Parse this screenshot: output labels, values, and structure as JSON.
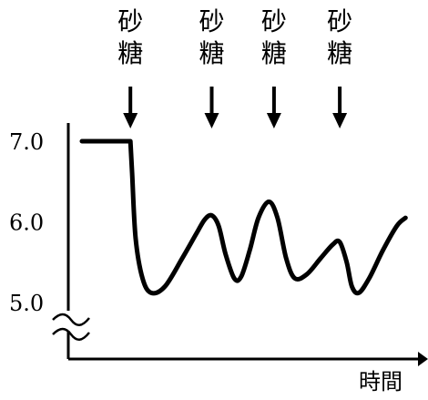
{
  "chart_data": {
    "type": "line",
    "title": "",
    "xlabel": "時間",
    "ylabel": "",
    "y_ticks": [
      "7.0",
      "6.0",
      "5.0"
    ],
    "y_tick_values": [
      7.0,
      6.0,
      5.0
    ],
    "ylim": [
      4.55,
      7.3
    ],
    "axis_break_marker": "≈",
    "grid": false,
    "legend": "none",
    "line_color": "#000000",
    "annotations": [
      {
        "label_top": "砂",
        "label_bottom": "糖",
        "at_x": 0.14,
        "marker": "arrow-down"
      },
      {
        "label_top": "砂",
        "label_bottom": "糖",
        "at_x": 0.375,
        "marker": "arrow-down"
      },
      {
        "label_top": "砂",
        "label_bottom": "糖",
        "at_x": 0.555,
        "marker": "arrow-down"
      },
      {
        "label_top": "砂",
        "label_bottom": "糖",
        "at_x": 0.745,
        "marker": "arrow-down"
      }
    ],
    "x_unit": "relative time (0–1)",
    "series": [
      {
        "values": [
          [
            0.0,
            7.0
          ],
          [
            0.14,
            7.0
          ],
          [
            0.145,
            6.6
          ],
          [
            0.155,
            5.8
          ],
          [
            0.175,
            5.3
          ],
          [
            0.2,
            5.12
          ],
          [
            0.24,
            5.2
          ],
          [
            0.29,
            5.55
          ],
          [
            0.33,
            5.85
          ],
          [
            0.355,
            6.03
          ],
          [
            0.375,
            6.08
          ],
          [
            0.395,
            5.95
          ],
          [
            0.415,
            5.6
          ],
          [
            0.44,
            5.3
          ],
          [
            0.46,
            5.32
          ],
          [
            0.485,
            5.65
          ],
          [
            0.51,
            6.05
          ],
          [
            0.54,
            6.25
          ],
          [
            0.565,
            6.05
          ],
          [
            0.59,
            5.55
          ],
          [
            0.615,
            5.3
          ],
          [
            0.65,
            5.35
          ],
          [
            0.69,
            5.55
          ],
          [
            0.725,
            5.72
          ],
          [
            0.745,
            5.75
          ],
          [
            0.765,
            5.5
          ],
          [
            0.78,
            5.2
          ],
          [
            0.8,
            5.12
          ],
          [
            0.83,
            5.3
          ],
          [
            0.87,
            5.65
          ],
          [
            0.91,
            5.95
          ],
          [
            0.935,
            6.05
          ]
        ]
      }
    ]
  }
}
